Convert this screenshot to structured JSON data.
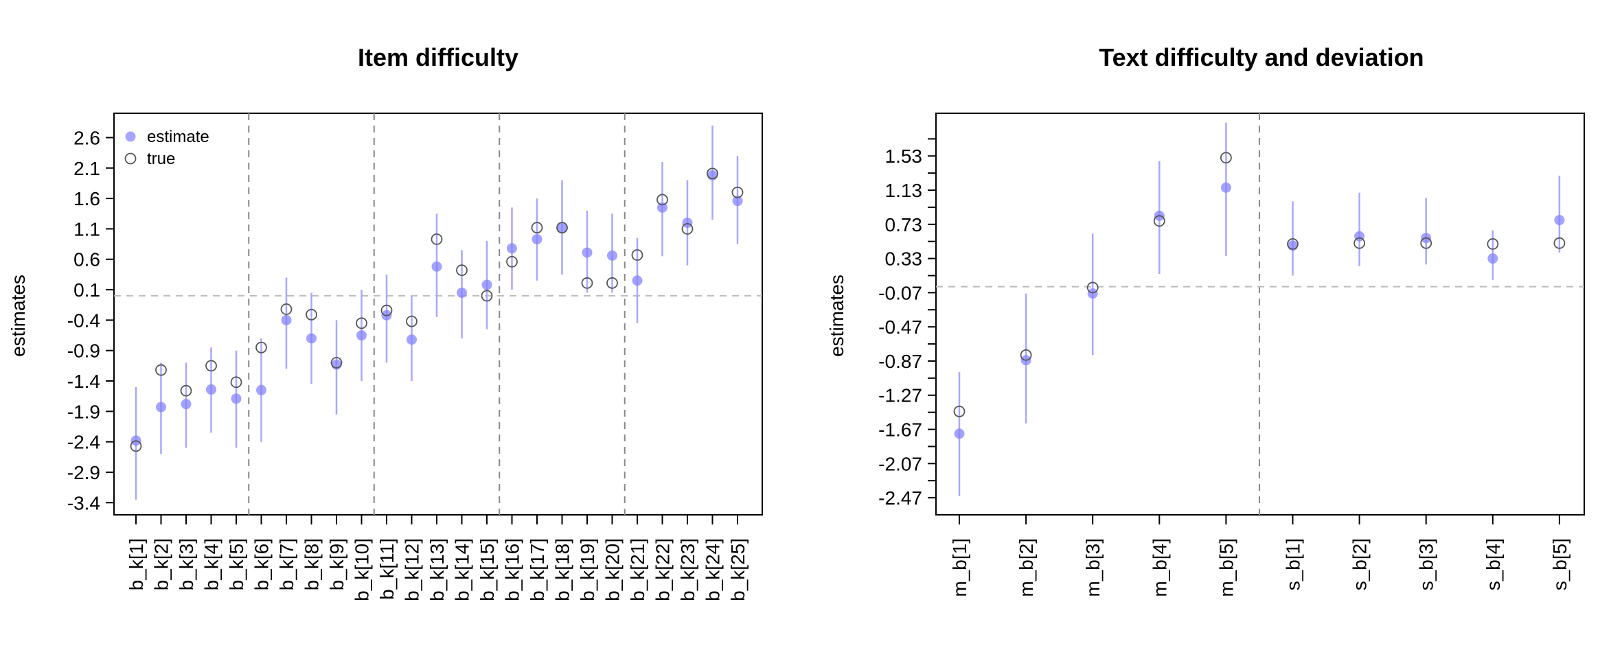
{
  "chart_data": [
    {
      "type": "scatter",
      "title": "Item difficulty",
      "ylabel": "estimates",
      "ylim": [
        -3.6,
        3.0
      ],
      "yticks": [
        -3.4,
        -2.9,
        -2.4,
        -1.9,
        -1.4,
        -0.9,
        -0.4,
        0.1,
        0.6,
        1.1,
        1.6,
        2.1,
        2.6
      ],
      "ytick_labels": [
        "-3.4",
        "-2.9",
        "-2.4",
        "-1.9",
        "-1.4",
        "-0.9",
        "-0.4",
        "0.1",
        "0.6",
        "1.1",
        "1.6",
        "2.1",
        "2.6"
      ],
      "categories": [
        "b_k[1]",
        "b_k[2]",
        "b_k[3]",
        "b_k[4]",
        "b_k[5]",
        "b_k[6]",
        "b_k[7]",
        "b_k[8]",
        "b_k[9]",
        "b_k[10]",
        "b_k[11]",
        "b_k[12]",
        "b_k[13]",
        "b_k[14]",
        "b_k[15]",
        "b_k[16]",
        "b_k[17]",
        "b_k[18]",
        "b_k[19]",
        "b_k[20]",
        "b_k[21]",
        "b_k[22]",
        "b_k[23]",
        "b_k[24]",
        "b_k[25]"
      ],
      "estimate": [
        -2.38,
        -1.83,
        -1.78,
        -1.54,
        -1.69,
        -1.55,
        -0.4,
        -0.7,
        -1.13,
        -0.65,
        -0.32,
        -0.72,
        0.48,
        0.05,
        0.18,
        0.78,
        0.93,
        1.11,
        0.71,
        0.66,
        0.25,
        1.45,
        1.2,
        1.98,
        1.56
      ],
      "true": [
        -2.47,
        -1.22,
        -1.56,
        -1.15,
        -1.42,
        -0.85,
        -0.22,
        -0.31,
        -1.1,
        -0.45,
        -0.24,
        -0.42,
        0.93,
        0.42,
        0.0,
        0.56,
        1.12,
        1.12,
        0.21,
        0.21,
        0.67,
        1.58,
        1.1,
        2.01,
        1.7
      ],
      "lower": [
        -3.35,
        -2.6,
        -2.5,
        -2.25,
        -2.5,
        -2.4,
        -1.2,
        -1.45,
        -1.95,
        -1.4,
        -1.1,
        -1.4,
        -0.35,
        -0.7,
        -0.55,
        0.1,
        0.25,
        0.35,
        0.05,
        0.05,
        -0.45,
        0.65,
        0.5,
        1.25,
        0.85
      ],
      "upper": [
        -1.5,
        -1.1,
        -1.1,
        -0.85,
        -0.9,
        -0.7,
        0.3,
        0.05,
        -0.4,
        0.1,
        0.35,
        0.0,
        1.35,
        0.75,
        0.9,
        1.45,
        1.6,
        1.9,
        1.4,
        1.35,
        0.95,
        2.2,
        1.9,
        2.8,
        2.3
      ],
      "vlines_after": [
        5,
        10,
        15,
        20
      ],
      "hline": 0.0,
      "legend": {
        "placement": "top-left",
        "entries": [
          "estimate",
          "true"
        ]
      }
    },
    {
      "type": "scatter",
      "title": "Text difficulty and deviation",
      "ylabel": "estimates",
      "ylim": [
        -2.67,
        2.03
      ],
      "yticks": [
        -2.47,
        -2.07,
        -1.67,
        -1.27,
        -0.87,
        -0.47,
        -0.07,
        0.33,
        0.73,
        1.13,
        1.53
      ],
      "ytick_labels": [
        "-2.47",
        "-2.07",
        "-1.67",
        "-1.27",
        "-0.87",
        "-0.47",
        "-0.07",
        "0.33",
        "0.73",
        "1.13",
        "1.53"
      ],
      "minor_yticks": [
        -2.27,
        -1.87,
        -1.47,
        -1.07,
        -0.67,
        -0.27,
        0.13,
        0.53,
        0.93,
        1.33,
        1.73
      ],
      "categories": [
        "m_b[1]",
        "m_b[2]",
        "m_b[3]",
        "m_b[4]",
        "m_b[5]",
        "s_b[1]",
        "s_b[2]",
        "s_b[3]",
        "s_b[4]",
        "s_b[5]"
      ],
      "estimate": [
        -1.72,
        -0.86,
        -0.08,
        0.83,
        1.16,
        0.48,
        0.59,
        0.57,
        0.33,
        0.78
      ],
      "true": [
        -1.46,
        -0.8,
        -0.01,
        0.77,
        1.51,
        0.5,
        0.51,
        0.51,
        0.5,
        0.51
      ],
      "lower": [
        -2.45,
        -1.6,
        -0.8,
        0.15,
        0.36,
        0.13,
        0.24,
        0.26,
        0.08,
        0.4
      ],
      "upper": [
        -1.0,
        -0.08,
        0.62,
        1.47,
        1.92,
        1.0,
        1.1,
        1.04,
        0.66,
        1.3
      ],
      "vlines_after": [
        5
      ],
      "hline": -0.0,
      "legend": null
    }
  ]
}
